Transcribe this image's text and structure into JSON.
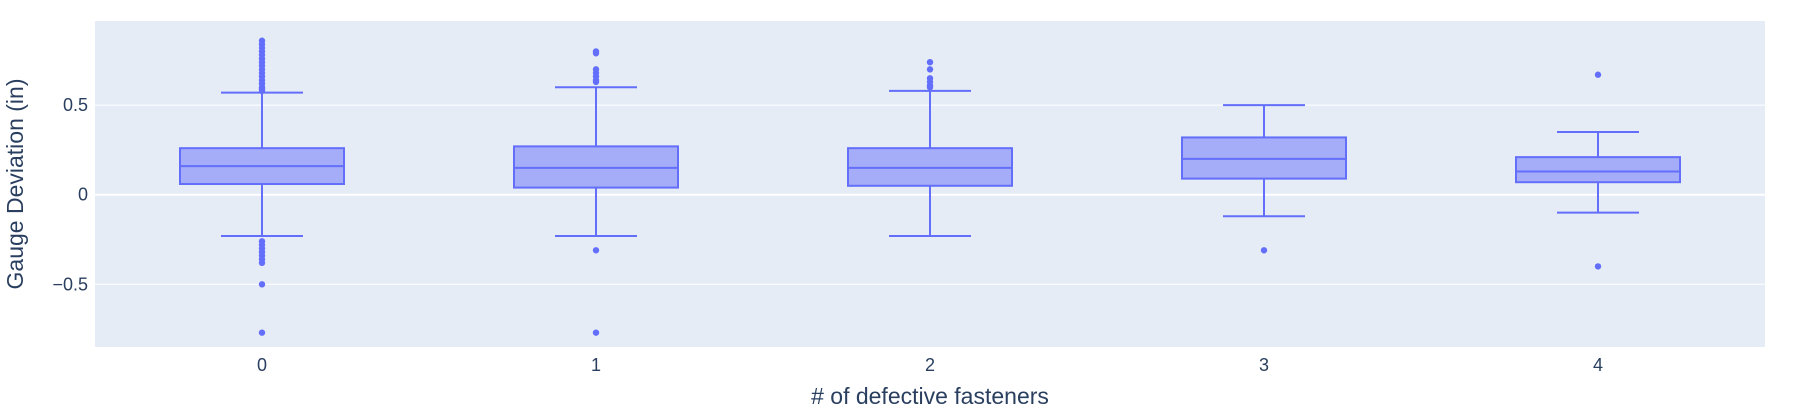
{
  "chart_data": {
    "type": "box",
    "xlabel": "# of defective fasteners",
    "ylabel": "Gauge Deviation (in)",
    "ylim": [
      -0.85,
      0.97
    ],
    "y_ticks": [
      -0.5,
      0,
      0.5
    ],
    "y_tick_labels": [
      "−0.5",
      "0",
      "0.5"
    ],
    "grid": true,
    "colors": {
      "plot_bg": "#E5ECF6",
      "box_fill": "#A5ACF8",
      "box_line": "#636EFA",
      "grid": "#ffffff",
      "text": "#2a3f5f"
    },
    "categories": [
      "0",
      "1",
      "2",
      "3",
      "4"
    ],
    "boxes": [
      {
        "category": "0",
        "lower_whisker": -0.23,
        "q1": 0.06,
        "median": 0.16,
        "q3": 0.26,
        "upper_whisker": 0.57,
        "outliers": [
          0.86,
          0.84,
          0.82,
          0.8,
          0.78,
          0.76,
          0.74,
          0.72,
          0.7,
          0.68,
          0.66,
          0.64,
          0.62,
          0.6,
          0.59,
          0.58,
          -0.26,
          -0.28,
          -0.3,
          -0.32,
          -0.34,
          -0.36,
          -0.38,
          -0.5,
          -0.77
        ]
      },
      {
        "category": "1",
        "lower_whisker": -0.23,
        "q1": 0.04,
        "median": 0.15,
        "q3": 0.27,
        "upper_whisker": 0.6,
        "outliers": [
          0.8,
          0.79,
          0.7,
          0.68,
          0.66,
          0.64,
          0.63,
          -0.31,
          -0.77
        ]
      },
      {
        "category": "2",
        "lower_whisker": -0.23,
        "q1": 0.05,
        "median": 0.15,
        "q3": 0.26,
        "upper_whisker": 0.58,
        "outliers": [
          0.74,
          0.7,
          0.65,
          0.63,
          0.61,
          0.6
        ]
      },
      {
        "category": "3",
        "lower_whisker": -0.12,
        "q1": 0.09,
        "median": 0.2,
        "q3": 0.32,
        "upper_whisker": 0.5,
        "outliers": [
          -0.31
        ]
      },
      {
        "category": "4",
        "lower_whisker": -0.1,
        "q1": 0.07,
        "median": 0.13,
        "q3": 0.21,
        "upper_whisker": 0.35,
        "outliers": [
          0.67,
          -0.4
        ]
      }
    ]
  }
}
